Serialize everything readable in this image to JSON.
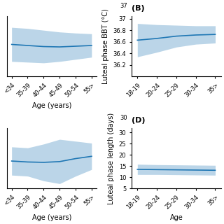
{
  "chart_data": [
    {
      "type": "line",
      "categories": [
        "<34",
        "35-39",
        "40-44",
        "45-49",
        "50-54",
        "55>"
      ],
      "values": [
        36.3,
        36.27,
        36.24,
        36.23,
        36.25,
        36.27
      ],
      "upper": [
        36.78,
        36.75,
        36.7,
        36.65,
        36.62,
        36.6
      ],
      "lower": [
        35.82,
        35.8,
        35.78,
        35.82,
        35.88,
        35.94
      ],
      "xlabel": "Age (years)",
      "ylim": [
        35.4,
        37.1
      ],
      "tick_labels": "x"
    },
    {
      "type": "line",
      "title": "(B)",
      "categories": [
        "18-19",
        "20-24",
        "25-29",
        "30-34",
        "35>"
      ],
      "values": [
        36.63,
        36.66,
        36.7,
        36.72,
        36.73
      ],
      "upper": [
        36.92,
        36.9,
        36.89,
        36.88,
        36.88
      ],
      "lower": [
        36.34,
        36.42,
        36.51,
        36.56,
        36.58
      ],
      "ylabel": "Luteal phase BBT (°C)",
      "ylim": [
        36.0,
        37.05
      ],
      "yticks": [
        36.2,
        36.4,
        36.6,
        36.8,
        {
          "value": 37.0,
          "label": "37"
        }
      ],
      "annotation": "37"
    },
    {
      "type": "line",
      "categories": [
        "<34",
        "35-39",
        "40-44",
        "45-49",
        "50-54",
        "55>"
      ],
      "values": [
        14.5,
        14.0,
        13.8,
        14.2,
        15.8,
        17.0
      ],
      "upper": [
        22.0,
        21.5,
        23.5,
        26.0,
        25.0,
        24.0
      ],
      "lower": [
        7.0,
        6.5,
        4.0,
        2.5,
        6.5,
        10.0
      ],
      "xlabel": "Age (years)",
      "ylim": [
        0,
        32
      ],
      "tick_labels": "x"
    },
    {
      "type": "line",
      "title": "(D)",
      "categories": [
        "18-19",
        "20-24",
        "25-29",
        "30-34",
        "35>"
      ],
      "values": [
        13.5,
        13.4,
        13.3,
        13.2,
        13.1
      ],
      "upper": [
        15.8,
        15.6,
        15.5,
        15.4,
        15.3
      ],
      "lower": [
        11.2,
        11.2,
        11.1,
        11.0,
        10.9
      ],
      "ylabel": "Luteal phase length (days)",
      "xlabel": "Age",
      "ylim": [
        5,
        32
      ],
      "yticks": [
        5,
        10,
        15,
        20,
        25,
        30
      ],
      "annotation": "30"
    }
  ]
}
